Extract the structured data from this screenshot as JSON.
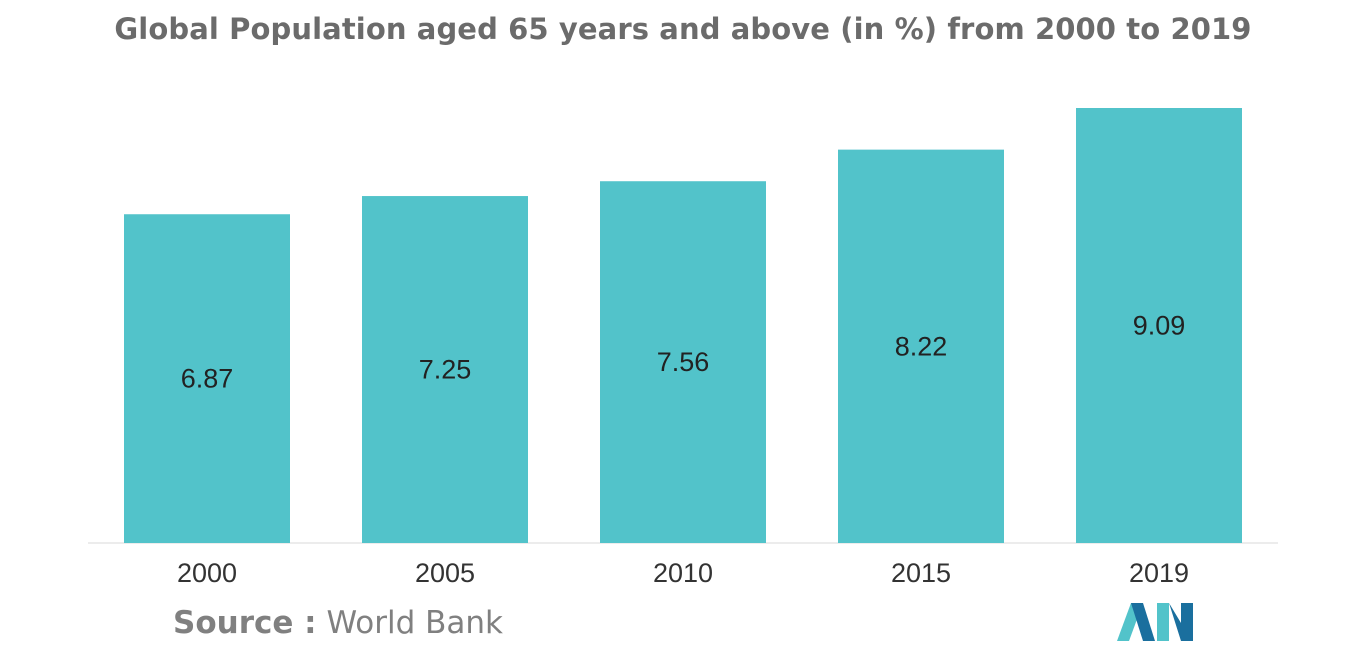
{
  "title": "Global Population aged 65 years and above (in %) from 2000 to 2019",
  "chart_data": {
    "type": "bar",
    "categories": [
      "2000",
      "2005",
      "2010",
      "2015",
      "2019"
    ],
    "values": [
      6.87,
      7.25,
      7.56,
      8.22,
      9.09
    ],
    "title": "Global Population aged 65 years and above (in %) from 2000 to 2019",
    "xlabel": "",
    "ylabel": "",
    "ylim": [
      0,
      9.09
    ],
    "grid": false,
    "legend": "none",
    "bar_color": "#52c3ca",
    "data_labels": true
  },
  "source": {
    "label": "Source :",
    "value": "World Bank"
  },
  "logo": {
    "icon": "mordor-intelligence-logo-icon",
    "colors": [
      "#1a6f9e",
      "#52c3ca"
    ]
  }
}
